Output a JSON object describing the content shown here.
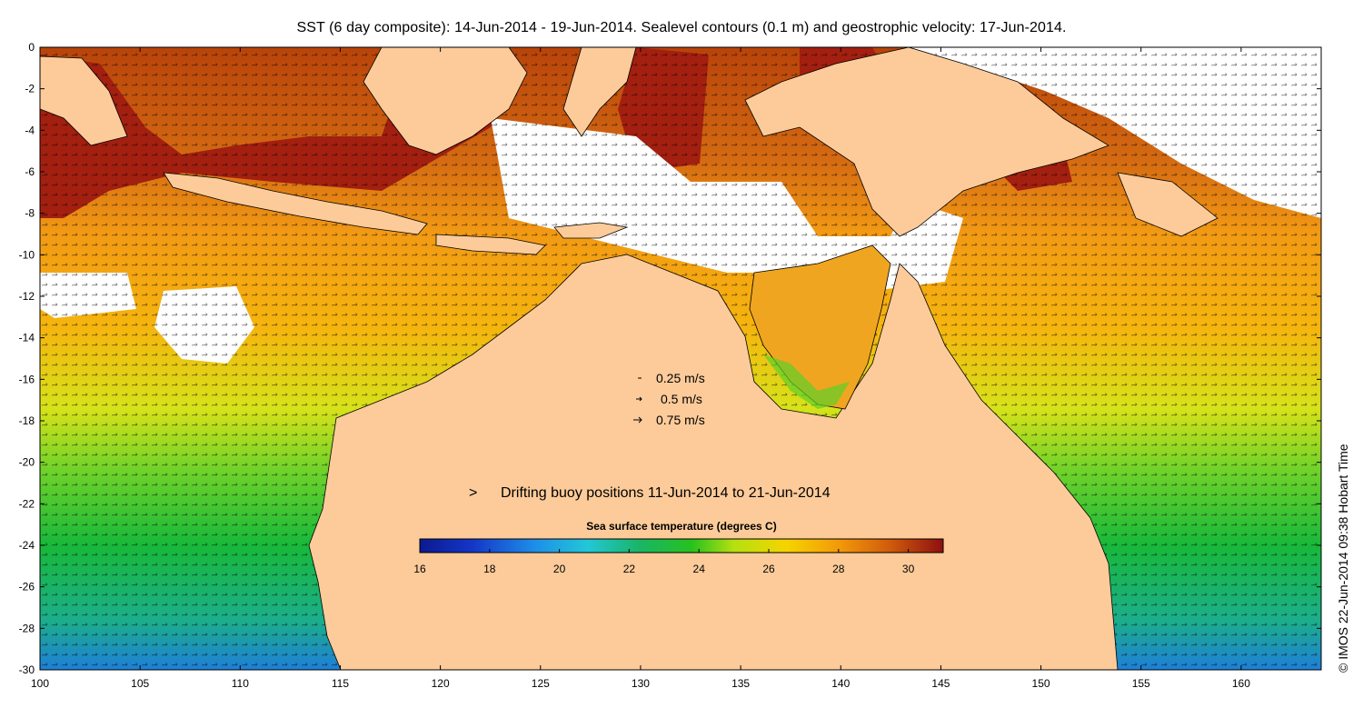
{
  "title": "SST (6 day composite): 14-Jun-2014 - 19-Jun-2014. Sealevel contours (0.1 m) and geostrophic velocity: 17-Jun-2014.",
  "credit": "© IMOS 22-Jun-2014 09:38 Hobart Time",
  "axes": {
    "x_ticks": [
      "100",
      "105",
      "110",
      "115",
      "120",
      "125",
      "130",
      "135",
      "140",
      "145",
      "150",
      "155",
      "160"
    ],
    "y_ticks": [
      "0",
      "-2",
      "-4",
      "-6",
      "-8",
      "-10",
      "-12",
      "-14",
      "-16",
      "-18",
      "-20",
      "-22",
      "-24",
      "-26",
      "-28",
      "-30"
    ],
    "lon_range": [
      100,
      164
    ],
    "lat_range": [
      -30,
      0
    ]
  },
  "velocity_legend": [
    {
      "label": "0.25 m/s"
    },
    {
      "label": "0.5 m/s"
    },
    {
      "label": "0.75 m/s"
    }
  ],
  "buoy_legend": {
    "label": "Drifting buoy positions 11-Jun-2014 to 21-Jun-2014",
    "symbol": ">",
    "color": "#dd22dd"
  },
  "colorbar": {
    "title": "Sea surface temperature (degrees C)",
    "tick_labels": [
      "16",
      "18",
      "20",
      "22",
      "24",
      "26",
      "28",
      "30"
    ],
    "range": [
      16,
      31
    ]
  },
  "colors": {
    "land": "#fccb99",
    "cloud": "#ffffff",
    "buoy": "#dd22dd"
  }
}
